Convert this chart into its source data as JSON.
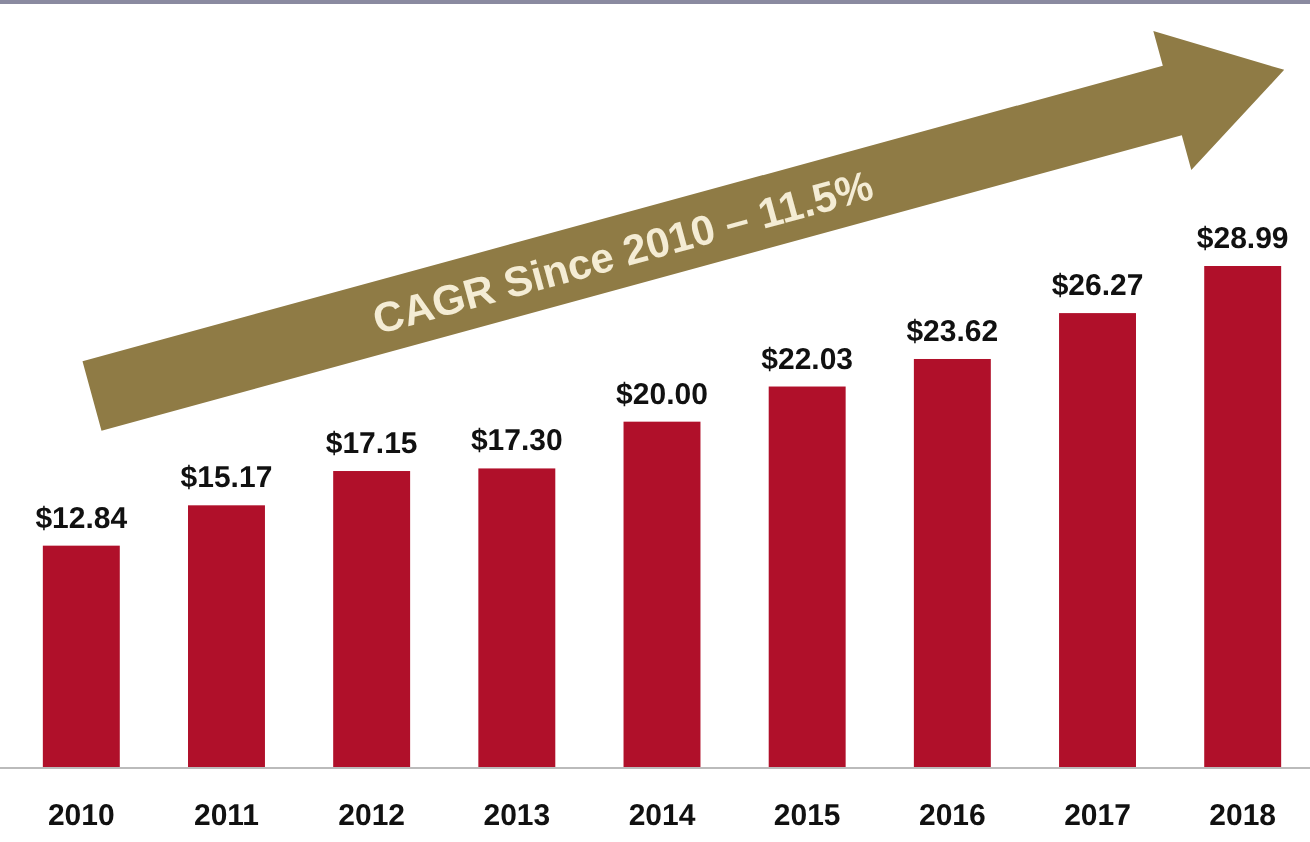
{
  "chart_data": {
    "type": "bar",
    "categories": [
      "2010",
      "2011",
      "2012",
      "2013",
      "2014",
      "2015",
      "2016",
      "2017",
      "2018"
    ],
    "values": [
      12.84,
      15.17,
      17.15,
      17.3,
      20.0,
      22.03,
      23.62,
      26.27,
      28.99
    ],
    "value_labels": [
      "$12.84",
      "$15.17",
      "$17.15",
      "$17.30",
      "$20.00",
      "$22.03",
      "$23.62",
      "$26.27",
      "$28.99"
    ],
    "color": "#b0102a",
    "annotations": [
      "CAGR Since 2010 – 11.5%"
    ]
  }
}
